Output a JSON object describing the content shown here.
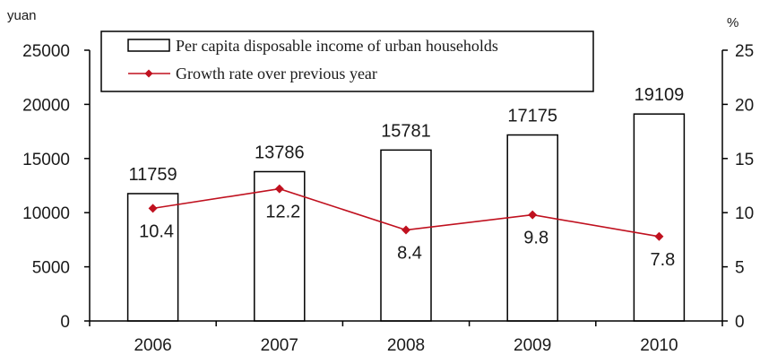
{
  "chart_data": {
    "type": "bar",
    "categories": [
      "2006",
      "2007",
      "2008",
      "2009",
      "2010"
    ],
    "series": [
      {
        "name": "Per capita disposable income of urban households",
        "type": "bar",
        "axis": "left",
        "values": [
          11759,
          13786,
          15781,
          17175,
          19109
        ],
        "labels": [
          "11759",
          "13786",
          "15781",
          "17175",
          "19109"
        ]
      },
      {
        "name": "Growth rate over previous year",
        "type": "line",
        "axis": "right",
        "values": [
          10.4,
          12.2,
          8.4,
          9.8,
          7.8
        ],
        "labels": [
          "10.4",
          "12.2",
          "8.4",
          "9.8",
          "7.8"
        ]
      }
    ],
    "y_left": {
      "unit": "yuan",
      "range": [
        0,
        25000
      ],
      "ticks": [
        "0",
        "5000",
        "10000",
        "15000",
        "20000",
        "25000"
      ]
    },
    "y_right": {
      "unit": "%",
      "range": [
        0,
        25
      ],
      "ticks": [
        "0",
        "5",
        "10",
        "15",
        "20",
        "25"
      ]
    },
    "legend_position": "top-center",
    "grid": false
  },
  "colors": {
    "line": "#c0111f",
    "bar_fill": "#ffffff",
    "bar_stroke": "#000000",
    "axis": "#000000",
    "text": "#1a1a1a"
  }
}
